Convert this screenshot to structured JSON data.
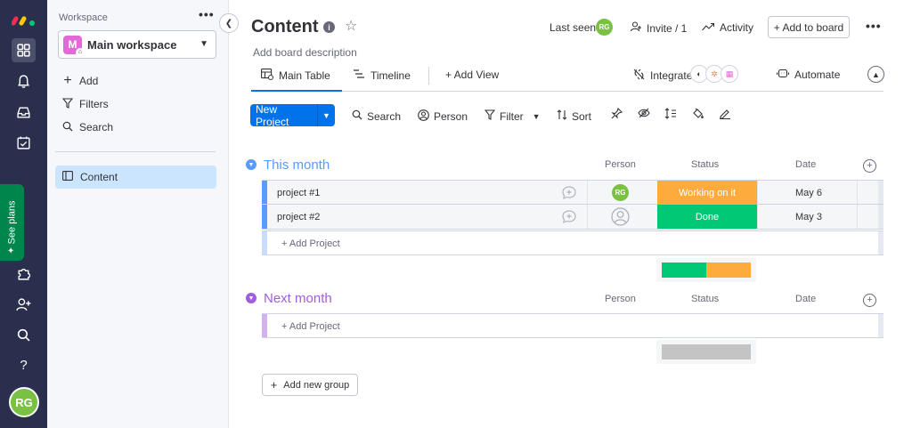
{
  "colors": {
    "rail_bg": "#292f4c",
    "primary": "#0073ea",
    "group1": "#579bfc",
    "group2": "#a25ddc",
    "working": "#fdab3d",
    "done": "#00c875",
    "avatar": "#7ac143",
    "see_plans": "#00854d"
  },
  "rail": {
    "icons": [
      "apps-icon",
      "bell-icon",
      "inbox-icon",
      "calendar-icon",
      "puzzle-icon",
      "invite-icon",
      "search-icon",
      "help-icon"
    ],
    "help_glyph": "?",
    "see_plans": "See plans",
    "avatar_initials": "RG"
  },
  "sidebar": {
    "section_label": "Workspace",
    "more_glyph": "•••",
    "workspace_initial": "M",
    "workspace_name": "Main workspace",
    "actions": [
      {
        "icon": "plus-icon",
        "glyph": "+",
        "label": "Add"
      },
      {
        "icon": "filter-icon",
        "glyph": "⛉",
        "label": "Filters"
      },
      {
        "icon": "search-icon",
        "glyph": "⌕",
        "label": "Search"
      }
    ],
    "boards": [
      {
        "label": "Content"
      }
    ]
  },
  "header": {
    "title": "Content",
    "description": "Add board description",
    "last_seen_label": "Last seen",
    "last_seen_initials": "RG",
    "invite_label": "Invite / 1",
    "activity_label": "Activity",
    "add_to_board_label": "+ Add to board",
    "more_glyph": "•••"
  },
  "tabs": [
    {
      "label": "Main Table",
      "active": true
    },
    {
      "label": "Timeline",
      "active": false
    },
    {
      "label": "+ Add View",
      "active": false
    }
  ],
  "integrate_label": "Integrate",
  "automate_label": "Automate",
  "toolbar": {
    "new_item_label": "New Project",
    "search_label": "Search",
    "person_label": "Person",
    "filter_label": "Filter",
    "sort_label": "Sort"
  },
  "groups": [
    {
      "title": "This month",
      "columns": {
        "person": "Person",
        "status": "Status",
        "date": "Date"
      },
      "items": [
        {
          "name": "project #1",
          "person": "RG",
          "status": "Working on it",
          "status_color": "#fdab3d",
          "date": "May 6"
        },
        {
          "name": "project #2",
          "person": "",
          "status": "Done",
          "status_color": "#00c875",
          "date": "May 3"
        }
      ],
      "add_item_label": "+ Add Project",
      "status_summary": [
        {
          "color": "#00c875",
          "fraction": 0.5
        },
        {
          "color": "#fdab3d",
          "fraction": 0.5
        }
      ]
    },
    {
      "title": "Next month",
      "columns": {
        "person": "Person",
        "status": "Status",
        "date": "Date"
      },
      "items": [],
      "add_item_label": "+ Add Project",
      "status_summary": [
        {
          "color": "#c4c4c4",
          "fraction": 1.0
        }
      ]
    }
  ],
  "add_group_label": "Add new group"
}
